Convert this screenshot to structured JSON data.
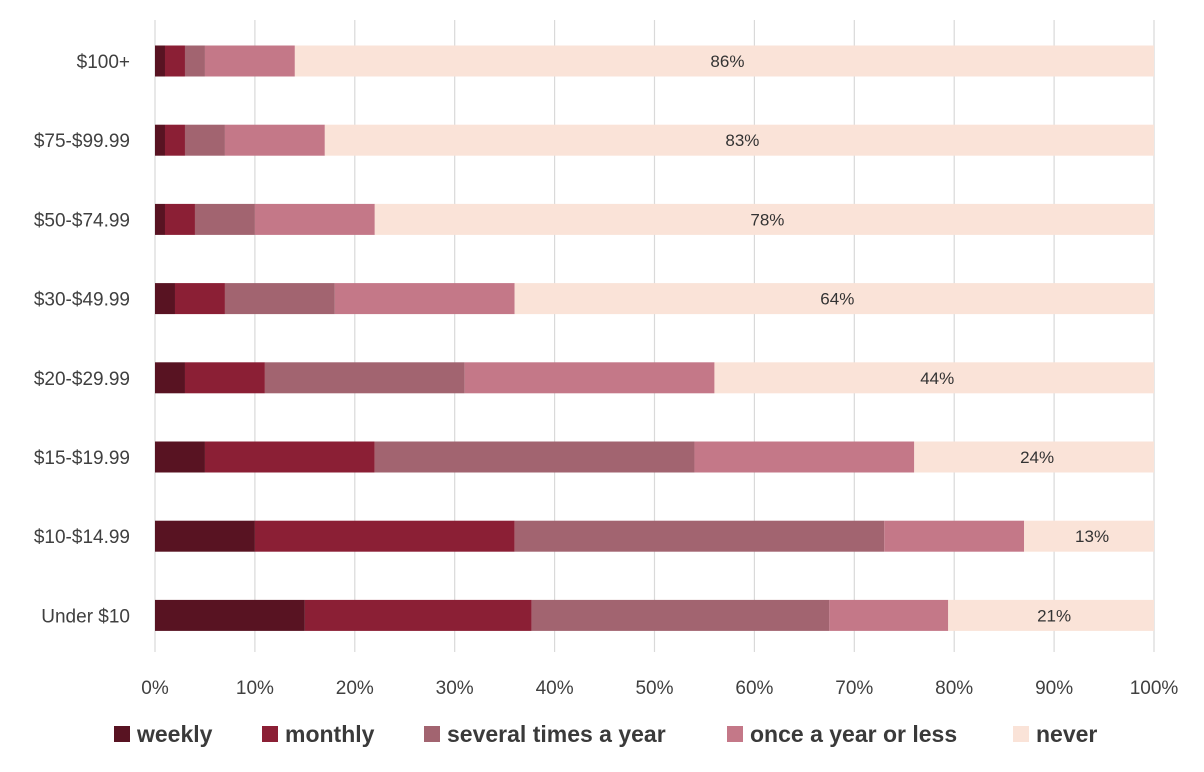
{
  "chart_data": {
    "type": "bar",
    "orientation": "horizontal",
    "stacked": true,
    "percent_stacked": true,
    "title": "",
    "xlabel": "",
    "ylabel": "",
    "xlim": [
      0,
      100
    ],
    "x_ticks": [
      "0%",
      "10%",
      "20%",
      "30%",
      "40%",
      "50%",
      "60%",
      "70%",
      "80%",
      "90%",
      "100%"
    ],
    "grid": true,
    "legend_position": "bottom",
    "categories": [
      "$100+",
      "$75-$99.99",
      "$50-$74.99",
      "$30-$49.99",
      "$20-$29.99",
      "$15-$19.99",
      "$10-$14.99",
      "Under $10"
    ],
    "series": [
      {
        "name": "weekly",
        "color": "#581322",
        "values": [
          1,
          1,
          1,
          2,
          3,
          5,
          10,
          15
        ]
      },
      {
        "name": "monthly",
        "color": "#8b1f35",
        "values": [
          2,
          2,
          3,
          5,
          8,
          17,
          26,
          22.7
        ]
      },
      {
        "name": "several times a year",
        "color": "#a26470",
        "values": [
          2,
          4,
          6,
          11,
          20,
          32,
          37,
          29.8
        ]
      },
      {
        "name": "once a year or less",
        "color": "#c47888",
        "values": [
          9,
          10,
          12,
          18,
          25,
          22,
          14,
          11.9
        ]
      },
      {
        "name": "never",
        "color": "#fae3d8",
        "values": [
          86,
          83,
          78,
          64,
          44,
          24,
          13,
          20.6
        ]
      }
    ],
    "data_labels": {
      "series": "never",
      "labels": [
        "86%",
        "83%",
        "78%",
        "64%",
        "44%",
        "24%",
        "13%",
        "21%"
      ]
    }
  }
}
